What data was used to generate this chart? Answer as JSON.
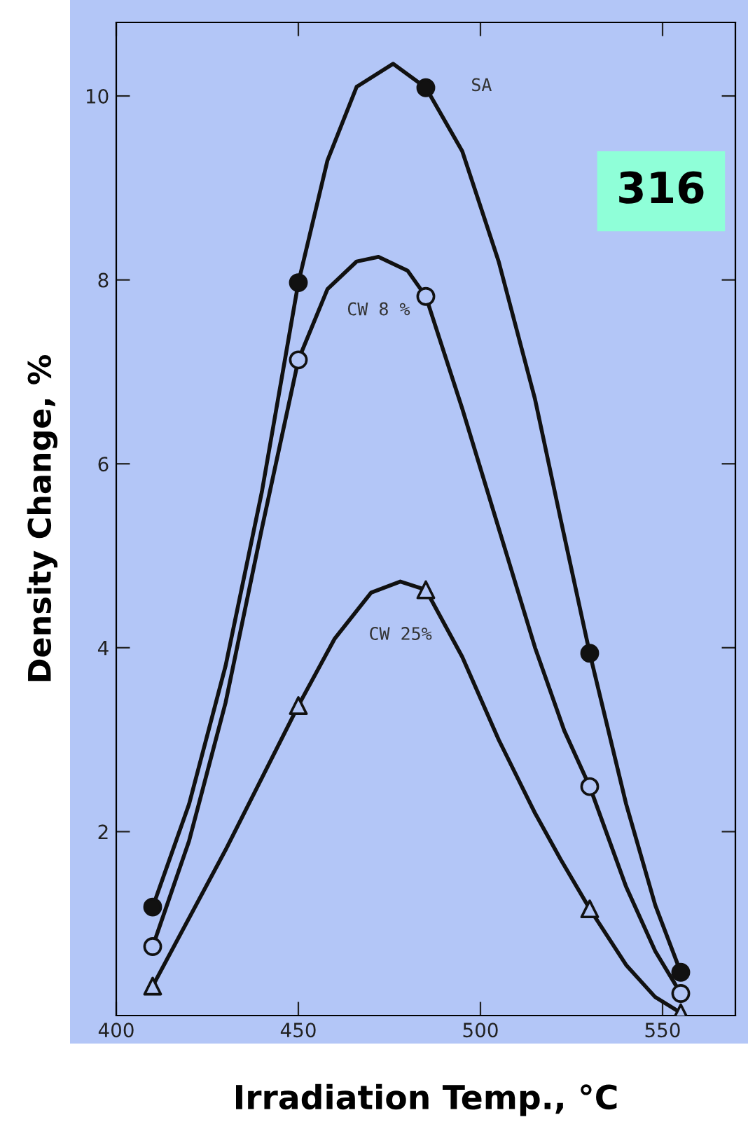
{
  "chart_data": {
    "type": "line",
    "xlabel": "Irradiation Temp., °C",
    "ylabel": "Density Change, %",
    "series": [
      {
        "name": "SA",
        "color": "#111111",
        "x": [
          410,
          420,
          430,
          440,
          450,
          458,
          466,
          476,
          485,
          495,
          505,
          515,
          522,
          530,
          540,
          548,
          555
        ],
        "values": [
          1.18,
          2.3,
          3.8,
          5.7,
          7.97,
          9.3,
          10.1,
          10.35,
          10.09,
          9.4,
          8.2,
          6.7,
          5.4,
          3.94,
          2.3,
          1.2,
          0.47
        ]
      },
      {
        "name": "CW 8 %",
        "color": "#111111",
        "x": [
          410,
          420,
          430,
          440,
          450,
          458,
          466,
          472,
          480,
          485,
          495,
          505,
          515,
          523,
          530,
          540,
          548,
          555
        ],
        "values": [
          0.75,
          1.9,
          3.4,
          5.3,
          7.13,
          7.9,
          8.2,
          8.25,
          8.1,
          7.82,
          6.6,
          5.3,
          4.0,
          3.1,
          2.49,
          1.4,
          0.7,
          0.24
        ]
      },
      {
        "name": "CW 25%",
        "color": "#111111",
        "x": [
          410,
          430,
          450,
          460,
          470,
          478,
          485,
          495,
          505,
          515,
          522,
          530,
          540,
          548,
          555
        ],
        "values": [
          0.32,
          1.8,
          3.37,
          4.1,
          4.6,
          4.72,
          4.63,
          3.9,
          3.0,
          2.2,
          1.7,
          1.16,
          0.55,
          0.2,
          0.03
        ]
      },
      {
        "type": "scatter",
        "color": "#111111",
        "marker": "circle",
        "x": [
          410,
          450,
          485,
          530,
          555
        ],
        "values": [
          1.18,
          7.97,
          10.09,
          3.94,
          0.47
        ]
      },
      {
        "type": "scatter",
        "color": "#111111",
        "marker": "circle",
        "x": [
          410,
          450,
          485,
          530,
          555
        ],
        "values": [
          0.75,
          7.13,
          7.82,
          2.49,
          0.24
        ]
      },
      {
        "type": "scatter",
        "color": "#111111",
        "marker": "triangle",
        "x": [
          410,
          450,
          485,
          530,
          555
        ],
        "values": [
          0.32,
          3.37,
          4.63,
          1.16,
          0.03
        ]
      }
    ],
    "annotations": [
      "316"
    ],
    "xlim": [
      400,
      570
    ],
    "ylim": [
      0,
      10.8
    ],
    "xticks": [
      400,
      450,
      500,
      550
    ],
    "yticks": [
      2,
      4,
      6,
      8,
      10
    ],
    "grid": false,
    "legend": false,
    "line_style": "solid"
  }
}
